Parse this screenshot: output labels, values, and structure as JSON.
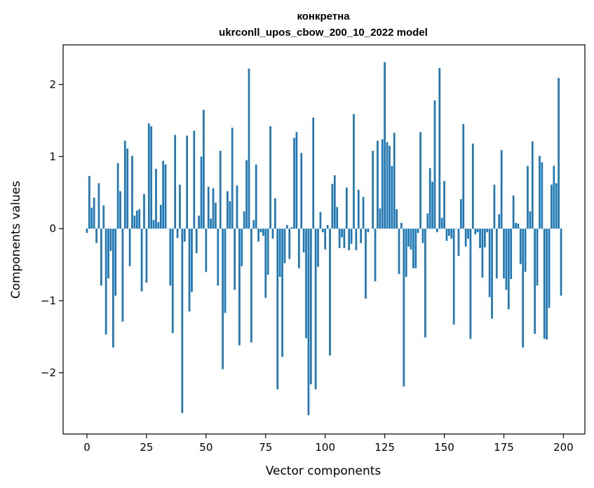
{
  "chart_data": {
    "type": "bar",
    "title_line1": "конкретна",
    "title_line2": "ukrconll_upos_cbow_200_10_2022 model",
    "xlabel": "Vector components",
    "ylabel": "Components values",
    "xlim": [
      -10,
      209
    ],
    "ylim": [
      -2.85,
      2.55
    ],
    "xticks": [
      0,
      25,
      50,
      75,
      100,
      125,
      150,
      175,
      200
    ],
    "xtick_labels": [
      "0",
      "25",
      "50",
      "75",
      "100",
      "125",
      "150",
      "175",
      "200"
    ],
    "yticks": [
      -2,
      -1,
      0,
      1,
      2
    ],
    "ytick_labels": [
      "−2",
      "−1",
      "0",
      "1",
      "2"
    ],
    "bar_color": "#1f77b4",
    "values": [
      -0.06,
      0.73,
      0.29,
      0.43,
      -0.2,
      0.63,
      -0.79,
      0.32,
      -1.47,
      -0.69,
      -0.31,
      -1.65,
      -0.93,
      0.91,
      0.52,
      -1.29,
      1.22,
      1.11,
      -0.52,
      1.01,
      0.18,
      0.25,
      0.27,
      -0.87,
      0.48,
      -0.75,
      1.46,
      1.42,
      0.12,
      0.83,
      0.09,
      0.33,
      0.94,
      0.89,
      0.0,
      -0.79,
      -1.45,
      1.3,
      -0.13,
      0.61,
      -2.56,
      -0.18,
      1.29,
      -1.15,
      -0.88,
      1.36,
      -0.34,
      0.18,
      1.0,
      1.65,
      -0.6,
      0.58,
      0.14,
      0.56,
      0.36,
      -0.79,
      1.08,
      -1.95,
      -1.17,
      0.52,
      0.38,
      1.4,
      -0.85,
      0.6,
      -1.62,
      -0.52,
      0.24,
      0.95,
      2.22,
      -1.58,
      0.12,
      0.89,
      -0.18,
      -0.05,
      -0.1,
      -0.96,
      -0.64,
      1.42,
      -0.14,
      0.42,
      -2.23,
      -0.67,
      -1.78,
      -0.48,
      0.05,
      -0.42,
      0.02,
      1.26,
      1.34,
      -0.55,
      1.05,
      -0.33,
      -1.52,
      -2.59,
      -2.16,
      1.54,
      -2.23,
      -0.53,
      0.23,
      -0.05,
      -0.29,
      0.05,
      -1.76,
      0.62,
      0.74,
      0.3,
      -0.27,
      -0.12,
      -0.27,
      0.57,
      -0.3,
      -0.21,
      1.59,
      -0.3,
      0.54,
      -0.2,
      0.44,
      -0.97,
      -0.05,
      0.0,
      1.08,
      -0.73,
      1.22,
      0.28,
      1.24,
      2.31,
      1.2,
      1.15,
      0.87,
      1.33,
      0.27,
      -0.63,
      0.08,
      -2.19,
      -0.67,
      -0.25,
      -0.29,
      -0.55,
      -0.55,
      -0.06,
      1.34,
      -0.2,
      -1.51,
      0.21,
      0.84,
      0.65,
      1.78,
      -0.05,
      2.23,
      0.15,
      0.66,
      -0.17,
      -0.1,
      -0.14,
      -1.33,
      0.0,
      -0.38,
      0.41,
      1.45,
      -0.25,
      -0.14,
      -1.53,
      1.18,
      -0.08,
      -0.05,
      -0.27,
      -0.68,
      -0.26,
      -0.05,
      -0.95,
      -1.25,
      0.61,
      -0.69,
      0.2,
      1.09,
      -0.69,
      -0.85,
      -1.12,
      -0.7,
      0.46,
      0.08,
      0.07,
      -0.49,
      -1.65,
      -0.6,
      0.87,
      0.24,
      1.21,
      -1.46,
      -0.79,
      1.01,
      0.92,
      -1.53,
      -1.54,
      -1.1,
      0.61,
      0.87,
      0.63,
      2.09,
      -0.93
    ]
  }
}
